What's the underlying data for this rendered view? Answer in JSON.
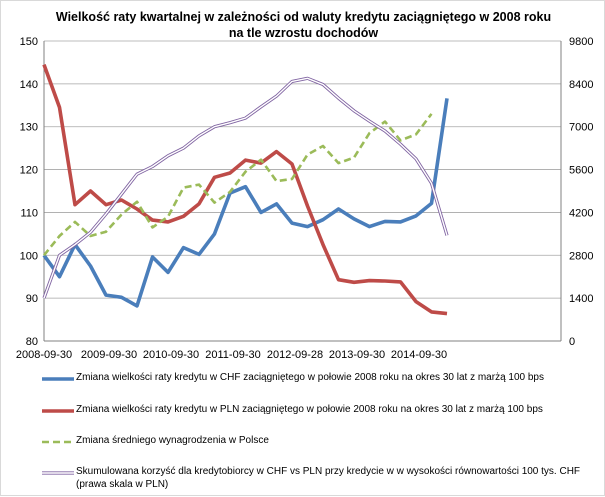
{
  "chart_data": {
    "type": "line",
    "title_line1": "Wielkość  raty kwartalnej  w zależności  od waluty kredytu zaciągniętego  w 2008 roku",
    "title_line2": "na tle wzrostu dochodów",
    "x_ticks": [
      "2008-09-30",
      "2009-09-30",
      "2010-09-30",
      "2011-09-30",
      "2012-09-28",
      "2013-09-30",
      "2014-09-30"
    ],
    "y_left_ticks": [
      "80",
      "90",
      "100",
      "110",
      "120",
      "130",
      "140",
      "150"
    ],
    "y_left_range": [
      80,
      150
    ],
    "y_right_ticks": [
      "0",
      "1400",
      "2800",
      "4200",
      "5600",
      "7000",
      "8400",
      "9800"
    ],
    "y_right_range": [
      0,
      9800
    ],
    "grid": true,
    "legend_position": "bottom",
    "series": [
      {
        "name": "Zmiana wielkości raty kredytu w CHF zaciągniętego w połowie 2008 roku na okres 30 lat z marżą 100 bps",
        "axis": "left",
        "color": "#4a7ebb",
        "style": "solid-thick",
        "values": [
          100,
          95,
          102.5,
          97.5,
          90.7,
          90.2,
          88.2,
          99.6,
          96,
          101.8,
          100.2,
          105,
          114.5,
          116,
          110,
          112,
          107.5,
          106.7,
          108.3,
          110.8,
          108.5,
          106.7,
          107.9,
          107.8,
          109.2,
          112.1,
          136.6
        ]
      },
      {
        "name": "Zmiana wielkości raty kredytu w PLN zaciągniętego w połowie 2008 roku na okres 30 lat z marżą 100 bps",
        "axis": "left",
        "color": "#be4b48",
        "style": "solid-thick",
        "values": [
          144.5,
          134.5,
          111.8,
          115,
          111.8,
          112.9,
          110.8,
          108.2,
          107.8,
          109.1,
          112,
          118.2,
          119.2,
          122.2,
          121.5,
          124.2,
          121.3,
          111.5,
          102.5,
          94.3,
          93.7,
          94.1,
          94,
          93.8,
          89.2,
          86.8,
          86.4
        ]
      },
      {
        "name": "Zmiana średniego wynagrodzenia w Polsce",
        "axis": "left",
        "color": "#9bbb59",
        "style": "dashed",
        "values": [
          100,
          104.5,
          107.8,
          104.5,
          105.5,
          109.5,
          112.5,
          106.5,
          109,
          115.8,
          116.5,
          112.3,
          114.8,
          119.5,
          122.3,
          117.3,
          117.8,
          123.5,
          125.5,
          121.5,
          122.8,
          128.5,
          131.2,
          126.8,
          128.2,
          133
        ]
      },
      {
        "name": "Skumulowana korzyść dla kredytobiorcy w CHF vs PLN przy kredycie w w wysokości równowartości 100 tys. CHF (prawa skala w PLN)",
        "axis": "right",
        "color": "#8064a2",
        "style": "double",
        "values": [
          1400,
          2800,
          3150,
          3550,
          4150,
          4800,
          5450,
          5700,
          6050,
          6300,
          6700,
          7000,
          7130,
          7280,
          7650,
          8000,
          8480,
          8580,
          8380,
          7930,
          7520,
          7180,
          6860,
          6430,
          5950,
          5150,
          3450
        ]
      }
    ]
  }
}
